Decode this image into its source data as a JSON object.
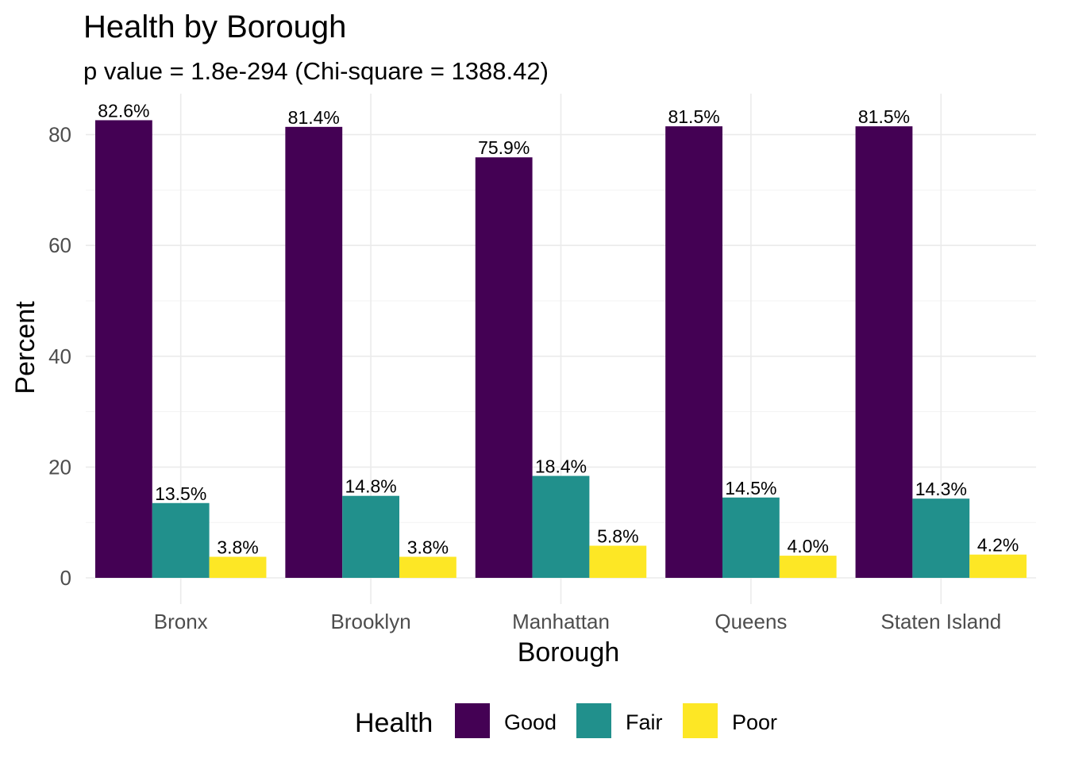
{
  "chart_data": {
    "type": "bar",
    "title": "Health by Borough",
    "subtitle": "p value = 1.8e-294 (Chi-square = 1388.42)",
    "xlabel": "Borough",
    "ylabel": "Percent",
    "categories": [
      "Bronx",
      "Brooklyn",
      "Manhattan",
      "Queens",
      "Staten Island"
    ],
    "series": [
      {
        "name": "Good",
        "color": "#440154",
        "values": [
          82.6,
          81.4,
          75.9,
          81.5,
          81.5
        ],
        "labels": [
          "82.6%",
          "81.4%",
          "75.9%",
          "81.5%",
          "81.5%"
        ]
      },
      {
        "name": "Fair",
        "color": "#21908C",
        "values": [
          13.5,
          14.8,
          18.4,
          14.5,
          14.3
        ],
        "labels": [
          "13.5%",
          "14.8%",
          "18.4%",
          "14.5%",
          "14.3%"
        ]
      },
      {
        "name": "Poor",
        "color": "#FDE725",
        "values": [
          3.8,
          3.8,
          5.8,
          4.0,
          4.2
        ],
        "labels": [
          "3.8%",
          "3.8%",
          "5.8%",
          "4.0%",
          "4.2%"
        ]
      }
    ],
    "yticks": [
      "0",
      "20",
      "40",
      "60",
      "80"
    ],
    "ylim": [
      0,
      86.7
    ],
    "grid": true,
    "legend": {
      "title": "Health",
      "position": "bottom"
    }
  }
}
